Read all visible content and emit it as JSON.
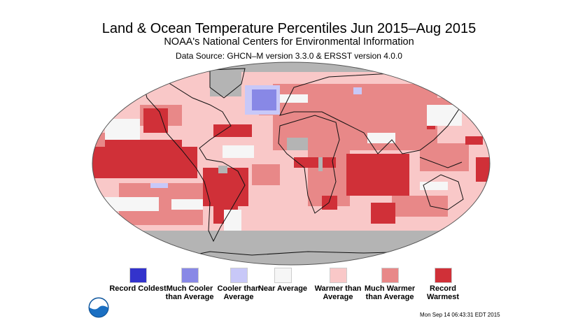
{
  "title": "Land & Ocean Temperature Percentiles Jun 2015–Aug 2015",
  "subtitle": "NOAA's National Centers for Environmental Information",
  "source": "Data Source: GHCN–M version 3.3.0 & ERSST version 4.0.0",
  "legend": [
    {
      "label": "Record Coldest",
      "color": "#3333cc"
    },
    {
      "label": "Much Cooler than Average",
      "color": "#8888e6"
    },
    {
      "label": "Cooler than Average",
      "color": "#c8c8f8"
    },
    {
      "label": "Near Average",
      "color": "#f6f6f6"
    },
    {
      "label": "Warmer than Average",
      "color": "#f9c8c8"
    },
    {
      "label": "Much Warmer than Average",
      "color": "#e88888"
    },
    {
      "label": "Record Warmest",
      "color": "#d03038"
    }
  ],
  "no_data_color": "#b4b4b4",
  "timestamp": "Mon Sep 14 06:43:31 EDT 2015",
  "logo": "noaa-logo"
}
